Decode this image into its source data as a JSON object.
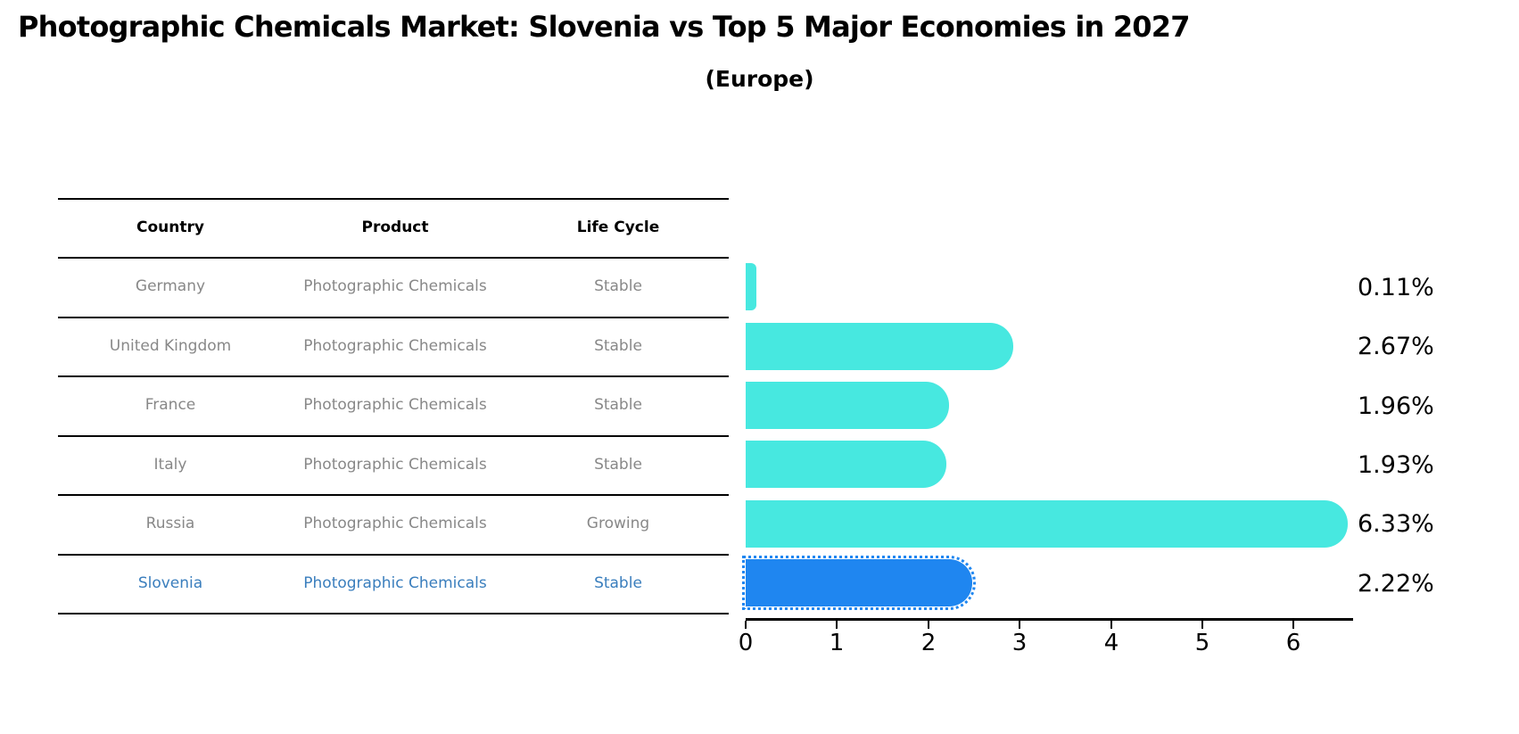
{
  "title": "Photographic Chemicals Market: Slovenia vs Top 5 Major Economies in 2027",
  "subtitle": "(Europe)",
  "table": {
    "headers": [
      "Country",
      "Product",
      "Life Cycle"
    ],
    "rows": [
      {
        "country": "Germany",
        "product": "Photographic Chemicals",
        "life_cycle": "Stable",
        "highlighted": false
      },
      {
        "country": "United Kingdom",
        "product": "Photographic Chemicals",
        "life_cycle": "Stable",
        "highlighted": false
      },
      {
        "country": "France",
        "product": "Photographic Chemicals",
        "life_cycle": "Stable",
        "highlighted": false
      },
      {
        "country": "Italy",
        "product": "Photographic Chemicals",
        "life_cycle": "Stable",
        "highlighted": false
      },
      {
        "country": "Russia",
        "product": "Photographic Chemicals",
        "life_cycle": "Growing",
        "highlighted": false
      },
      {
        "country": "Slovenia",
        "product": "Photographic Chemicals",
        "life_cycle": "Stable",
        "highlighted": true
      }
    ]
  },
  "chart_data": {
    "type": "bar",
    "orientation": "horizontal",
    "title": "Photographic Chemicals Market: Slovenia vs Top 5 Major Economies in 2027 (Europe)",
    "categories": [
      "Germany",
      "United Kingdom",
      "France",
      "Italy",
      "Russia",
      "Slovenia"
    ],
    "values": [
      0.11,
      2.67,
      1.96,
      1.93,
      6.33,
      2.22
    ],
    "value_labels": [
      "0.11%",
      "2.67%",
      "1.96%",
      "1.93%",
      "6.33%",
      "2.22%"
    ],
    "xlim": [
      0,
      6.65
    ],
    "x_ticks": [
      "0",
      "1",
      "2",
      "3",
      "4",
      "5",
      "6"
    ],
    "grid": false,
    "legend_position": "none",
    "bar_color": "#47E8E0",
    "highlight_index": 5,
    "highlight_bar_color": "#1F86F0",
    "highlight_bar_border_style": "dotted",
    "highlight_text_color": "#3A7EBD",
    "row_text_color": "#888888",
    "axis_color": "#000000"
  }
}
